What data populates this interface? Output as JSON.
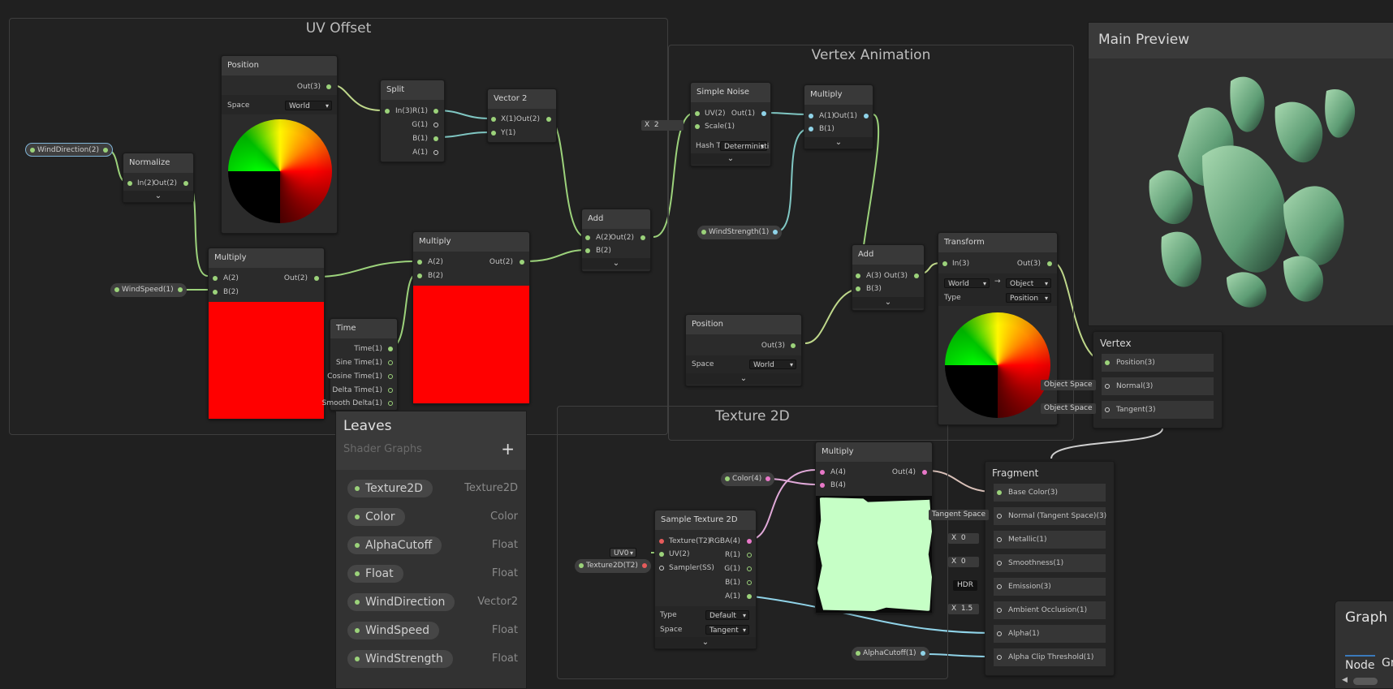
{
  "groups": {
    "uv_offset": "UV Offset",
    "vertex_animation": "Vertex Animation",
    "texture2d": "Texture 2D"
  },
  "nodes": {
    "position1": {
      "title": "Position",
      "out": "Out(3)",
      "space_label": "Space",
      "space_value": "World"
    },
    "split": {
      "title": "Split",
      "in": "In(3)",
      "r": "R(1)",
      "g": "G(1)",
      "b": "B(1)",
      "a": "A(1)"
    },
    "vector2": {
      "title": "Vector 2",
      "x": "X(1)",
      "y": "Y(1)",
      "out": "Out(2)"
    },
    "normalize": {
      "title": "Normalize",
      "in": "In(2)",
      "out": "Out(2)"
    },
    "multiply1": {
      "title": "Multiply",
      "a": "A(2)",
      "b": "B(2)",
      "out": "Out(2)"
    },
    "multiply2": {
      "title": "Multiply",
      "a": "A(2)",
      "b": "B(2)",
      "out": "Out(2)"
    },
    "time": {
      "title": "Time",
      "outs": [
        "Time(1)",
        "Sine Time(1)",
        "Cosine Time(1)",
        "Delta Time(1)",
        "Smooth Delta(1)"
      ]
    },
    "add1": {
      "title": "Add",
      "a": "A(2)",
      "b": "B(2)",
      "out": "Out(2)"
    },
    "simple_noise": {
      "title": "Simple Noise",
      "uv": "UV(2)",
      "scale": "Scale(1)",
      "out": "Out(1)",
      "hash_label": "Hash Ty",
      "hash_value": "Deterministi"
    },
    "multiply3": {
      "title": "Multiply",
      "a": "A(1)",
      "b": "B(1)",
      "out": "Out(1)"
    },
    "add2": {
      "title": "Add",
      "a": "A(3)",
      "b": "B(3)",
      "out": "Out(3)"
    },
    "transform": {
      "title": "Transform",
      "in": "In(3)",
      "out": "Out(3)",
      "from": "World",
      "arrow": "→",
      "to": "Object",
      "type_label": "Type",
      "type_value": "Position"
    },
    "position2": {
      "title": "Position",
      "out": "Out(3)",
      "space_label": "Space",
      "space_value": "World"
    },
    "multiply4": {
      "title": "Multiply",
      "a": "A(4)",
      "b": "B(4)",
      "out": "Out(4)"
    },
    "sample": {
      "title": "Sample Texture 2D",
      "texture": "Texture(T2)",
      "uv": "UV(2)",
      "sampler": "Sampler(SS)",
      "rgba": "RGBA(4)",
      "r": "R(1)",
      "g": "G(1)",
      "b": "B(1)",
      "a": "A(1)",
      "type_label": "Type",
      "type_value": "Default",
      "space_label": "Space",
      "space_value": "Tangent"
    }
  },
  "properties": {
    "wind_direction": "WindDirection(2)",
    "wind_speed": "WindSpeed(1)",
    "wind_strength": "WindStrength(1)",
    "color": "Color(4)",
    "texture2d": "Texture2D(T2)",
    "alpha_cutoff": "AlphaCutoff(1)",
    "uv0": "UV0",
    "scale_x": "X",
    "scale_value": "2"
  },
  "vertex": {
    "title": "Vertex",
    "position": "Position(3)",
    "normal": "Normal(3)",
    "tangent": "Tangent(3)",
    "object_space": "Object Space"
  },
  "fragment": {
    "title": "Fragment",
    "base_color": "Base Color(3)",
    "normal": "Normal (Tangent Space)(3)",
    "tangent_space": "Tangent Space",
    "metallic": "Metallic(1)",
    "smoothness": "Smoothness(1)",
    "emission": "Emission(3)",
    "hdr": "HDR",
    "ao": "Ambient Occlusion(1)",
    "alpha": "Alpha(1)",
    "clip": "Alpha Clip Threshold(1)",
    "x": "X",
    "metallic_val": "0",
    "smooth_val": "0",
    "ao_val": "1.5"
  },
  "preview": {
    "title": "Main Preview"
  },
  "blackboard": {
    "title": "Leaves",
    "subtitle": "Shader Graphs",
    "add": "+",
    "items": [
      {
        "name": "Texture2D",
        "type": "Texture2D"
      },
      {
        "name": "Color",
        "type": "Color"
      },
      {
        "name": "AlphaCutoff",
        "type": "Float"
      },
      {
        "name": "Float",
        "type": "Float"
      },
      {
        "name": "WindDirection",
        "type": "Vector2"
      },
      {
        "name": "WindSpeed",
        "type": "Float"
      },
      {
        "name": "WindStrength",
        "type": "Float"
      }
    ]
  },
  "graph_inspector": {
    "title": "Graph I",
    "tab1": "Node",
    "tab2": "Gr"
  },
  "colors": {
    "float_port": "#9bd27a",
    "texture_port": "#e65b5b",
    "color_port": "#e878c8",
    "float1_port": "#8fd3e8"
  }
}
